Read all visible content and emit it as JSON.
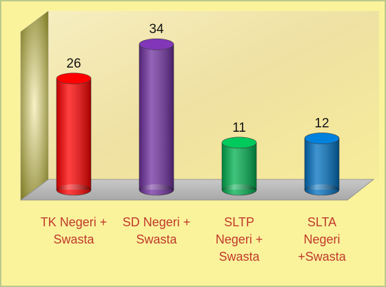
{
  "chart_data": {
    "type": "bar",
    "categories": [
      "TK Negeri + Swasta",
      "SD Negeri + Swasta",
      "SLTP Negeri + Swasta",
      "SLTA Negeri +Swasta"
    ],
    "values": [
      26,
      34,
      11,
      12
    ],
    "colors": [
      "#ff0000",
      "#7030a0",
      "#00b050",
      "#0070c0"
    ]
  }
}
